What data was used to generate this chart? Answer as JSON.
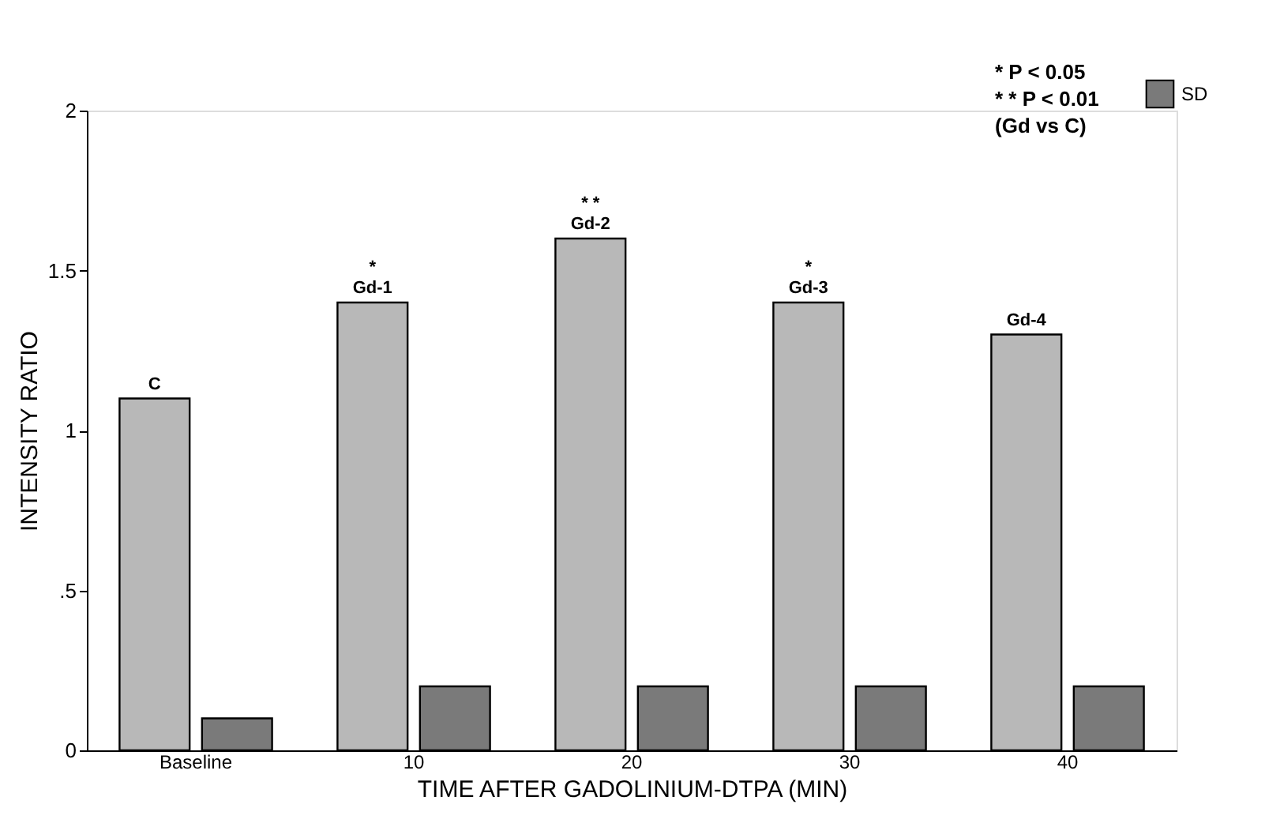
{
  "chart_data": {
    "type": "bar",
    "xlabel": "TIME AFTER GADOLINIUM-DTPA (MIN)",
    "ylabel": "INTENSITY RATIO",
    "categories": [
      "Baseline",
      "10",
      "20",
      "30",
      "40"
    ],
    "series": [
      {
        "color": "#b8b8b8",
        "values": [
          1.1,
          1.4,
          1.6,
          1.4,
          1.3
        ]
      },
      {
        "name": "SD",
        "color": "#7a7a7a",
        "values": [
          0.1,
          0.2,
          0.2,
          0.2,
          0.2
        ]
      }
    ],
    "ylim": [
      0,
      2
    ],
    "yticks": [
      {
        "value": 0,
        "label": "0"
      },
      {
        "value": 0.5,
        "label": ".5"
      },
      {
        "value": 1,
        "label": "1"
      },
      {
        "value": 1.5,
        "label": "1.5"
      },
      {
        "value": 2,
        "label": "2"
      }
    ],
    "grid": false,
    "legend": "top right",
    "annotations": [
      {
        "text": "C",
        "x": "Baseline",
        "y": 1.1
      },
      {
        "text": "Gd-1",
        "x": "10",
        "y": 1.4
      },
      {
        "text": "*",
        "x": "10",
        "y": 1.4
      },
      {
        "text": "Gd-2",
        "x": "20",
        "y": 1.6
      },
      {
        "text": "* *",
        "x": "20",
        "y": 1.6
      },
      {
        "text": "Gd-3",
        "x": "30",
        "y": 1.4
      },
      {
        "text": "*",
        "x": "30",
        "y": 1.4
      },
      {
        "text": "Gd-4",
        "x": "40",
        "y": 1.3
      },
      "* P < 0.05",
      "* * P < 0.01",
      "(Gd vs C)"
    ]
  }
}
